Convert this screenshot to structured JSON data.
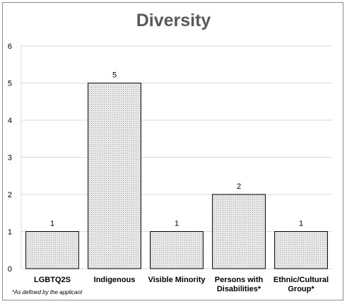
{
  "chart_data": {
    "type": "bar",
    "title": "Diversity",
    "categories": [
      "LGBTQ2S",
      "Indigenous",
      "Visible Minority",
      "Persons with Disabilities*",
      "Ethnic/Cultural Group*"
    ],
    "category_lines": [
      [
        "LGBTQ2S"
      ],
      [
        "Indigenous"
      ],
      [
        "Visible Minority"
      ],
      [
        "Persons with",
        "Disabilities*"
      ],
      [
        "Ethnic/Cultural",
        "Group*"
      ]
    ],
    "values": [
      1,
      5,
      1,
      2,
      1
    ],
    "data_labels": [
      "1",
      "5",
      "1",
      "2",
      "1"
    ],
    "yticks": [
      "0",
      "1",
      "2",
      "3",
      "4",
      "5",
      "6"
    ],
    "ylim": [
      0,
      6
    ],
    "xlabel": "",
    "ylabel": "",
    "grid": true,
    "legend": "none",
    "colors": {
      "bar_fill": "#d9d9d9",
      "bar_stroke": "#000000",
      "grid": "#d9d9d9",
      "text": "#000000",
      "title": "#595959"
    }
  },
  "footnote": "*As defined by the applicant"
}
